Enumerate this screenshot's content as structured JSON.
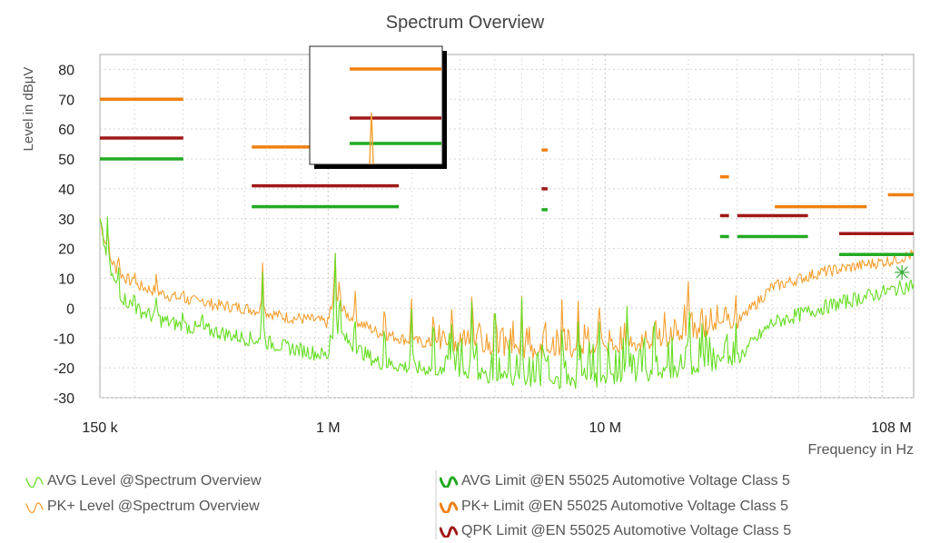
{
  "chart_data": {
    "type": "line",
    "title": "Spectrum Overview",
    "ylabel": "Level in dBµV",
    "xlabel": "Frequency in Hz",
    "x_scale": "log",
    "xlim": [
      150000,
      130000000
    ],
    "ylim": [
      -30,
      85
    ],
    "grid": true,
    "x_ticks": [
      {
        "value": 150000,
        "label": "150 k"
      },
      {
        "value": 1000000,
        "label": "1 M"
      },
      {
        "value": 10000000,
        "label": "10 M"
      },
      {
        "value": 108000000,
        "label": "108 M"
      }
    ],
    "y_ticks": [
      -30,
      -20,
      -10,
      0,
      10,
      20,
      30,
      40,
      50,
      60,
      70,
      80
    ],
    "colors": {
      "avg_level": "#66dd22",
      "pk_level": "#f5a030",
      "avg_limit": "#22aa22",
      "pk_limit": "#f08010",
      "qpk_limit": "#a01818"
    },
    "series": [
      {
        "name": "AVG Level @Spectrum Overview",
        "key": "avg_level",
        "x": [
          150000,
          160000,
          175000,
          200000,
          250000,
          300000,
          400000,
          500000,
          580000,
          700000,
          900000,
          1000000,
          1050000,
          1200000,
          1500000,
          2000000,
          3000000,
          4000000,
          5000000,
          6000000,
          7000000,
          8000000,
          10000000,
          15000000,
          20000000,
          30000000,
          40000000,
          60000000,
          80000000,
          108000000,
          130000000
        ],
        "y": [
          29,
          15,
          5,
          0,
          -4,
          -6,
          -8,
          -10,
          -11,
          -13,
          -15,
          -16,
          -6,
          -12,
          -18,
          -20,
          -21,
          -23,
          -24,
          -24,
          -25,
          -25,
          -24,
          -22,
          -20,
          -17,
          -5,
          0,
          3,
          6,
          8
        ]
      },
      {
        "name": "PK+ Level @Spectrum Overview",
        "key": "pk_level",
        "x": [
          150000,
          160000,
          175000,
          200000,
          250000,
          300000,
          400000,
          500000,
          580000,
          700000,
          900000,
          1000000,
          1050000,
          1200000,
          1500000,
          2000000,
          3000000,
          4000000,
          5000000,
          6000000,
          7000000,
          8000000,
          10000000,
          15000000,
          20000000,
          30000000,
          40000000,
          60000000,
          80000000,
          108000000,
          130000000
        ],
        "y": [
          30,
          18,
          12,
          8,
          5,
          3,
          1,
          0,
          -1,
          -3,
          -4,
          -5,
          2,
          -3,
          -8,
          -11,
          -13,
          -14,
          -15,
          -15,
          -15,
          -15,
          -14,
          -12,
          -9,
          -5,
          7,
          12,
          14,
          16,
          18
        ]
      },
      {
        "name": "AVG Limit @EN 55025 Automotive Voltage Class 5",
        "key": "avg_limit",
        "segments": [
          {
            "x": [
              150000,
              300000
            ],
            "y": 50
          },
          {
            "x": [
              530000,
              1800000
            ],
            "y": 34
          },
          {
            "x": [
              5900000,
              6200000
            ],
            "y": 33
          },
          {
            "x": [
              26000000,
              28000000
            ],
            "y": 24
          },
          {
            "x": [
              30000000,
              54000000
            ],
            "y": 24
          },
          {
            "x": [
              70000000,
              130000000
            ],
            "y": 18
          }
        ]
      },
      {
        "name": "PK+ Limit @EN 55025 Automotive Voltage Class 5",
        "key": "pk_limit",
        "segments": [
          {
            "x": [
              150000,
              300000
            ],
            "y": 70
          },
          {
            "x": [
              530000,
              1800000
            ],
            "y": 54
          },
          {
            "x": [
              5900000,
              6200000
            ],
            "y": 53
          },
          {
            "x": [
              26000000,
              28000000
            ],
            "y": 44
          },
          {
            "x": [
              41000000,
              88000000
            ],
            "y": 34
          },
          {
            "x": [
              105000000,
              130000000
            ],
            "y": 38
          }
        ]
      },
      {
        "name": "QPK Limit @EN 55025 Automotive Voltage Class 5",
        "key": "qpk_limit",
        "segments": [
          {
            "x": [
              150000,
              300000
            ],
            "y": 57
          },
          {
            "x": [
              530000,
              1800000
            ],
            "y": 41
          },
          {
            "x": [
              5900000,
              6200000
            ],
            "y": 40
          },
          {
            "x": [
              26000000,
              28000000
            ],
            "y": 31
          },
          {
            "x": [
              30000000,
              54000000
            ],
            "y": 31
          },
          {
            "x": [
              70000000,
              130000000
            ],
            "y": 25
          }
        ]
      }
    ],
    "legend": [
      {
        "label": "AVG Level @Spectrum Overview",
        "key": "avg_level"
      },
      {
        "label": "PK+ Level @Spectrum Overview",
        "key": "pk_level"
      },
      {
        "label": "AVG Limit @EN 55025 Automotive Voltage Class 5",
        "key": "avg_limit"
      },
      {
        "label": "PK+ Limit @EN 55025 Automotive Voltage Class 5",
        "key": "pk_limit"
      },
      {
        "label": "QPK Limit @EN 55025 Automotive Voltage Class 5",
        "key": "qpk_limit"
      }
    ],
    "legend_position": "bottom"
  }
}
